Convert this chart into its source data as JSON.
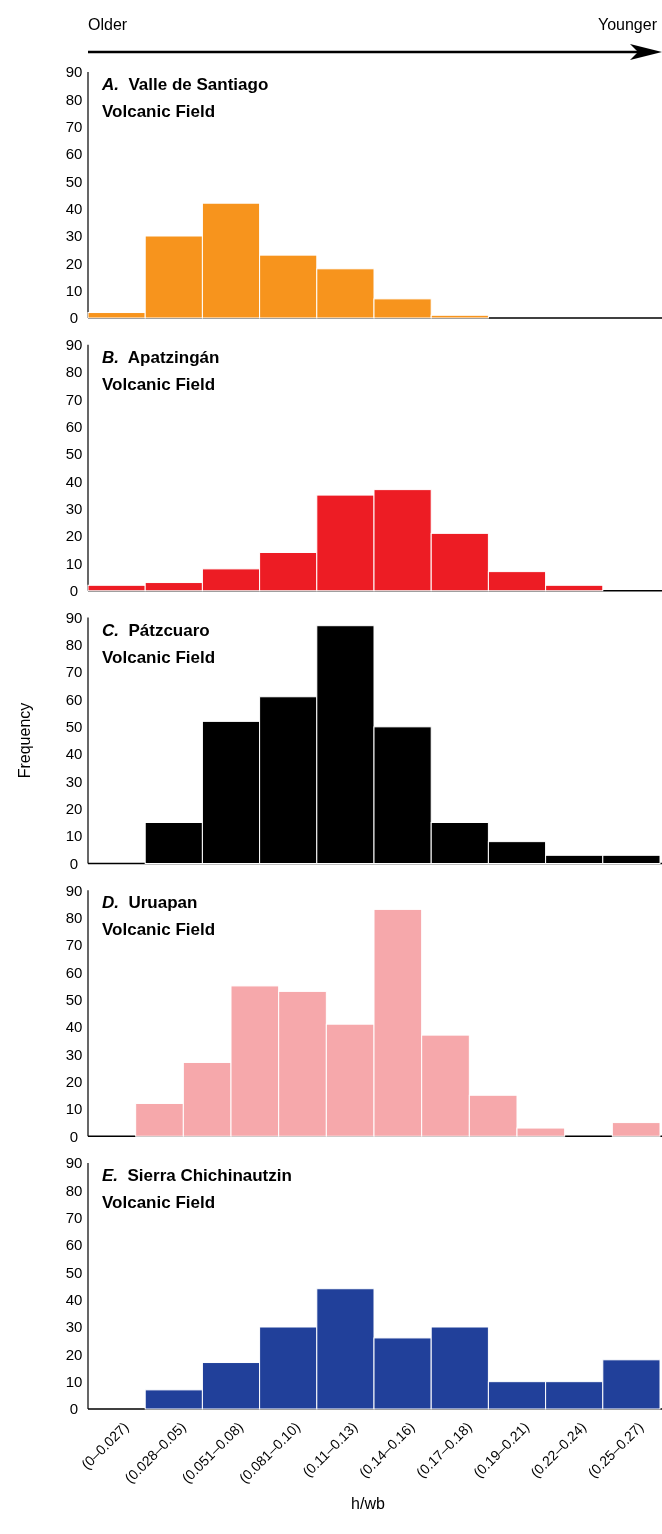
{
  "chart_data": [
    {
      "type": "bar",
      "title": "A. Valle de Santiago\nVolcanic Field",
      "annotations": [
        "Older",
        "Younger"
      ],
      "categories": [
        null,
        null,
        null,
        null,
        null,
        null,
        null,
        null,
        null,
        null
      ],
      "values": [
        2,
        30,
        42,
        23,
        18,
        7,
        1,
        null,
        null,
        null
      ],
      "color": "#f7941d",
      "ylim": [
        0,
        90
      ],
      "yticks": [
        0,
        10,
        20,
        30,
        40,
        50,
        60,
        70,
        80,
        90
      ],
      "tick_labels": "y"
    },
    {
      "type": "bar",
      "title": "B. Apatzingán\nVolcanic Field",
      "categories": [
        null,
        null,
        null,
        null,
        null,
        null,
        null,
        null,
        null,
        null
      ],
      "values": [
        2,
        3,
        8,
        14,
        35,
        37,
        21,
        7,
        2,
        null
      ],
      "color": "#ed1c24",
      "ylim": [
        0,
        90
      ],
      "yticks": [
        0,
        10,
        20,
        30,
        40,
        50,
        60,
        70,
        80,
        90
      ],
      "tick_labels": "y"
    },
    {
      "type": "bar",
      "title": "C. Pátzcuaro\nVolcanic Field",
      "ylabel": "Frequency",
      "categories": [
        null,
        null,
        null,
        null,
        null,
        null,
        null,
        null,
        null,
        null
      ],
      "values": [
        null,
        15,
        52,
        61,
        87,
        50,
        15,
        8,
        3,
        3
      ],
      "color": "#000000",
      "ylim": [
        0,
        90
      ],
      "yticks": [
        0,
        10,
        20,
        30,
        40,
        50,
        60,
        70,
        80,
        90
      ],
      "tick_labels": "y"
    },
    {
      "type": "bar",
      "title": "D. Uruapan\nVolcanic Field",
      "categories": [
        null,
        null,
        null,
        null,
        null,
        null,
        null,
        null,
        null,
        null,
        null,
        null
      ],
      "values": [
        null,
        12,
        27,
        55,
        53,
        41,
        83,
        37,
        15,
        3,
        null,
        5
      ],
      "color": "#f6a8ab",
      "ylim": [
        0,
        90
      ],
      "yticks": [
        0,
        10,
        20,
        30,
        40,
        50,
        60,
        70,
        80,
        90
      ],
      "tick_labels": "y"
    },
    {
      "type": "bar",
      "title": "E. Sierra Chichinautzin\nVolcanic Field",
      "xlabel": "h/wb",
      "categories": [
        "(0–0.027)",
        "(0.028–0.05)",
        "(0.051–0.08)",
        "(0.081–0.10)",
        "(0.11–0.13)",
        "(0.14–0.16)",
        "(0.17–0.18)",
        "(0.19–0.21)",
        "(0.22–0.24)",
        "(0.25–0.27)"
      ],
      "values": [
        null,
        7,
        17,
        30,
        44,
        26,
        30,
        10,
        10,
        18
      ],
      "color": "#21409a",
      "ylim": [
        0,
        90
      ],
      "yticks": [
        0,
        10,
        20,
        30,
        40,
        50,
        60,
        70,
        80,
        90
      ]
    }
  ]
}
